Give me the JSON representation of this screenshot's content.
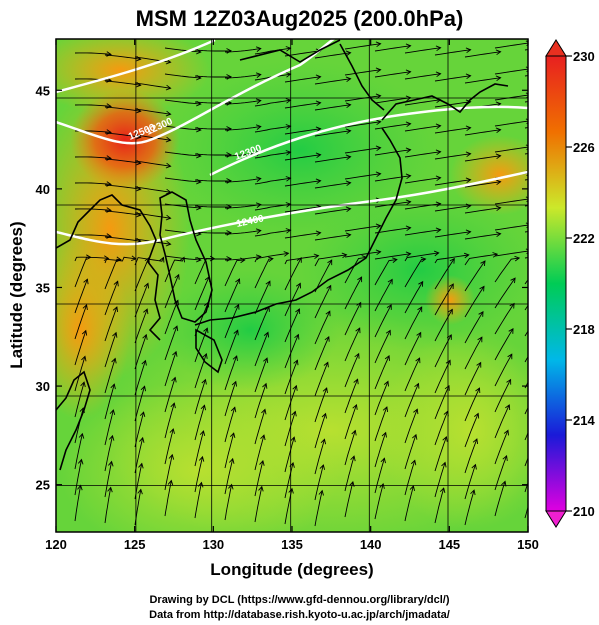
{
  "title": "MSM 12Z03Aug2025 (200.0hPa)",
  "xlabel": "Longitude (degrees)",
  "ylabel": "Latitude  (degrees)",
  "credits": [
    "Drawing by DCL (https://www.gfd-dennou.org/library/dcl/)",
    "Data from http://database.rish.kyoto-u.ac.jp/arch/jmadata/"
  ],
  "chart_data": {
    "type": "heatmap",
    "x_ticks": [
      120,
      125,
      130,
      135,
      140,
      145,
      150
    ],
    "y_ticks": [
      25,
      30,
      35,
      40,
      45
    ],
    "xlim": [
      120,
      150
    ],
    "ylim": [
      22.6,
      47.6
    ],
    "grid": true,
    "colorbar": {
      "ticks": [
        210,
        214,
        218,
        222,
        226,
        230
      ],
      "range": [
        210,
        230
      ],
      "colors": [
        "#e000e0",
        "#1a1ad8",
        "#00b8e8",
        "#00cc55",
        "#cce82a",
        "#f07000",
        "#e82020"
      ]
    },
    "contour_labels": [
      "12300",
      "12300",
      "12400",
      "12500"
    ],
    "overlay": "streamlines"
  }
}
